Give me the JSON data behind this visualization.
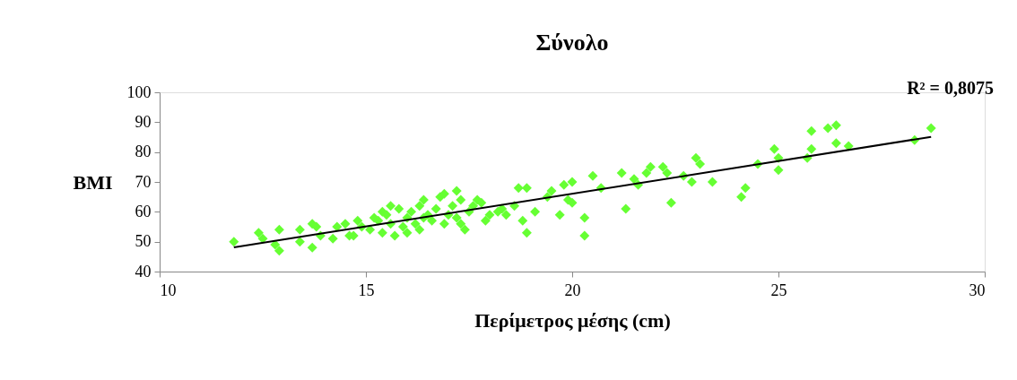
{
  "chart_data": {
    "type": "scatter",
    "title": "Σύνολο",
    "xlabel": "Περίμετρος μέσης (cm)",
    "ylabel": "BMI",
    "annotations": [
      "R² = 0,8075"
    ],
    "xlim": [
      10,
      30
    ],
    "xticks": [
      10,
      15,
      20,
      25,
      30
    ],
    "ylim": [
      40,
      100
    ],
    "yticks": [
      40,
      50,
      60,
      70,
      80,
      90,
      100
    ],
    "grid": false,
    "series": [
      {
        "marker": "diamond",
        "color": "#66ff33",
        "x": [
          11.8,
          12.4,
          12.5,
          12.8,
          12.9,
          12.9,
          13.4,
          13.4,
          13.7,
          13.7,
          13.8,
          13.9,
          14.2,
          14.3,
          14.5,
          14.6,
          14.7,
          14.8,
          14.9,
          15.1,
          15.2,
          15.3,
          15.4,
          15.4,
          15.5,
          15.6,
          15.6,
          15.7,
          15.8,
          15.9,
          16.0,
          16.0,
          16.1,
          16.2,
          16.3,
          16.3,
          16.4,
          16.4,
          16.5,
          16.6,
          16.7,
          16.8,
          16.9,
          16.9,
          17.0,
          17.1,
          17.2,
          17.2,
          17.3,
          17.3,
          17.4,
          17.5,
          17.6,
          17.7,
          17.8,
          17.9,
          18.0,
          18.2,
          18.3,
          18.4,
          18.6,
          18.7,
          18.9,
          18.9,
          18.8,
          19.1,
          19.4,
          19.5,
          19.7,
          19.8,
          19.9,
          20.0,
          20.0,
          20.3,
          20.3,
          20.5,
          20.7,
          21.2,
          21.3,
          21.5,
          21.6,
          21.8,
          21.9,
          22.2,
          22.3,
          22.4,
          22.7,
          22.9,
          23.0,
          23.1,
          23.4,
          24.1,
          24.2,
          24.5,
          24.9,
          25.0,
          25.0,
          25.7,
          25.8,
          25.8,
          26.2,
          26.4,
          26.4,
          26.7,
          28.3,
          28.7
        ],
        "values": [
          50,
          53,
          51,
          49,
          47,
          54,
          50,
          54,
          48,
          56,
          55,
          52,
          51,
          55,
          56,
          52,
          52,
          57,
          55,
          54,
          58,
          57,
          53,
          60,
          59,
          62,
          56,
          52,
          61,
          55,
          53,
          58,
          60,
          56,
          62,
          54,
          58,
          64,
          59,
          57,
          61,
          65,
          56,
          66,
          59,
          62,
          67,
          58,
          64,
          56,
          54,
          60,
          62,
          64,
          63,
          57,
          59,
          60,
          61,
          59,
          62,
          68,
          68,
          53,
          57,
          60,
          65,
          67,
          59,
          69,
          64,
          70,
          63,
          58,
          52,
          72,
          68,
          73,
          61,
          71,
          69,
          73,
          75,
          75,
          73,
          63,
          72,
          70,
          78,
          76,
          70,
          65,
          68,
          76,
          81,
          78,
          74,
          78,
          81,
          87,
          88,
          89,
          83,
          82,
          84,
          88
        ]
      },
      {
        "type": "line",
        "color": "#000000",
        "x": [
          11.8,
          28.7
        ],
        "values": [
          48.1,
          85.1
        ]
      }
    ]
  }
}
